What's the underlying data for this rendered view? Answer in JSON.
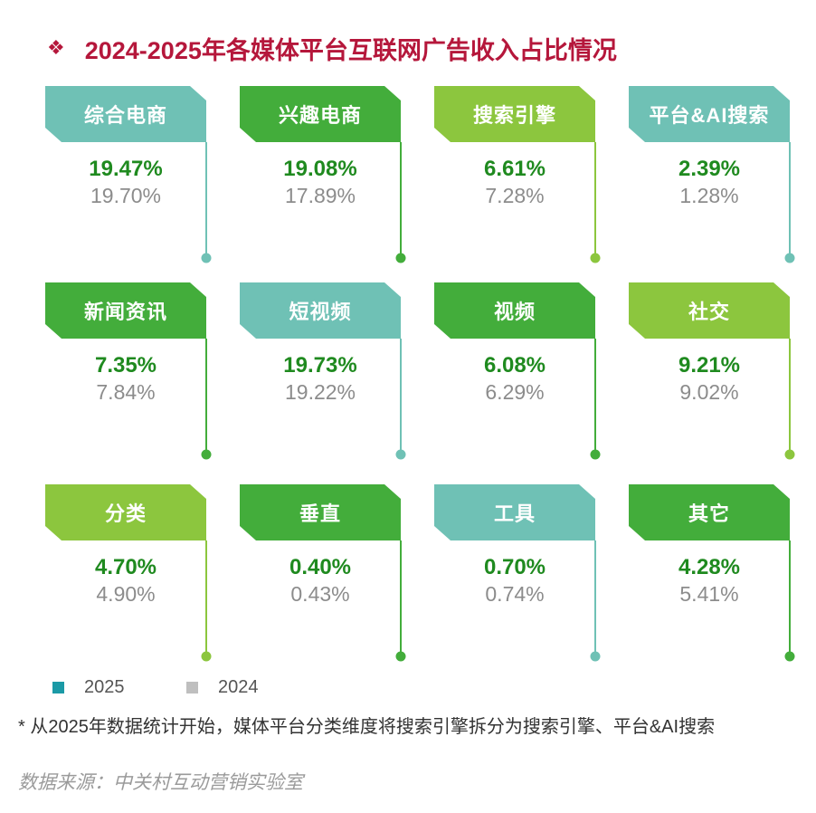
{
  "title": {
    "bullet": "❖",
    "text": "2024-2025年各媒体平台互联网广告收入占比情况"
  },
  "colors": {
    "teal": "#6fc1b5",
    "green": "#43ad3b",
    "lime": "#8cc63e",
    "value2025": "#1f8a1f",
    "value2024": "#8c8c8c",
    "legend2025": "#1b9aa6",
    "legend2024": "#bfbfbf",
    "titleColor": "#b5173b"
  },
  "chart_data": {
    "type": "table",
    "title": "2024-2025年各媒体平台互联网广告收入占比情况",
    "series_names": [
      "2025",
      "2024"
    ],
    "categories": [
      "综合电商",
      "兴趣电商",
      "搜索引擎",
      "平台&AI搜索",
      "新闻资讯",
      "短视频",
      "视频",
      "社交",
      "分类",
      "垂直",
      "工具",
      "其它"
    ],
    "cards": [
      {
        "label": "综合电商",
        "v2025": "19.47%",
        "v2024": "19.70%",
        "color": "teal"
      },
      {
        "label": "兴趣电商",
        "v2025": "19.08%",
        "v2024": "17.89%",
        "color": "green"
      },
      {
        "label": "搜索引擎",
        "v2025": "6.61%",
        "v2024": "7.28%",
        "color": "lime"
      },
      {
        "label": "平台&AI搜索",
        "v2025": "2.39%",
        "v2024": "1.28%",
        "color": "teal"
      },
      {
        "label": "新闻资讯",
        "v2025": "7.35%",
        "v2024": "7.84%",
        "color": "green"
      },
      {
        "label": "短视频",
        "v2025": "19.73%",
        "v2024": "19.22%",
        "color": "teal"
      },
      {
        "label": "视频",
        "v2025": "6.08%",
        "v2024": "6.29%",
        "color": "green"
      },
      {
        "label": "社交",
        "v2025": "9.21%",
        "v2024": "9.02%",
        "color": "lime"
      },
      {
        "label": "分类",
        "v2025": "4.70%",
        "v2024": "4.90%",
        "color": "lime"
      },
      {
        "label": "垂直",
        "v2025": "0.40%",
        "v2024": "0.43%",
        "color": "green"
      },
      {
        "label": "工具",
        "v2025": "0.70%",
        "v2024": "0.74%",
        "color": "teal"
      },
      {
        "label": "其它",
        "v2025": "4.28%",
        "v2024": "5.41%",
        "color": "green"
      }
    ]
  },
  "legend": {
    "label_2025": "2025",
    "label_2024": "2024"
  },
  "note": "* 从2025年数据统计开始，媒体平台分类维度将搜索引擎拆分为搜索引擎、平台&AI搜索",
  "source": "数据来源：中关村互动营销实验室"
}
